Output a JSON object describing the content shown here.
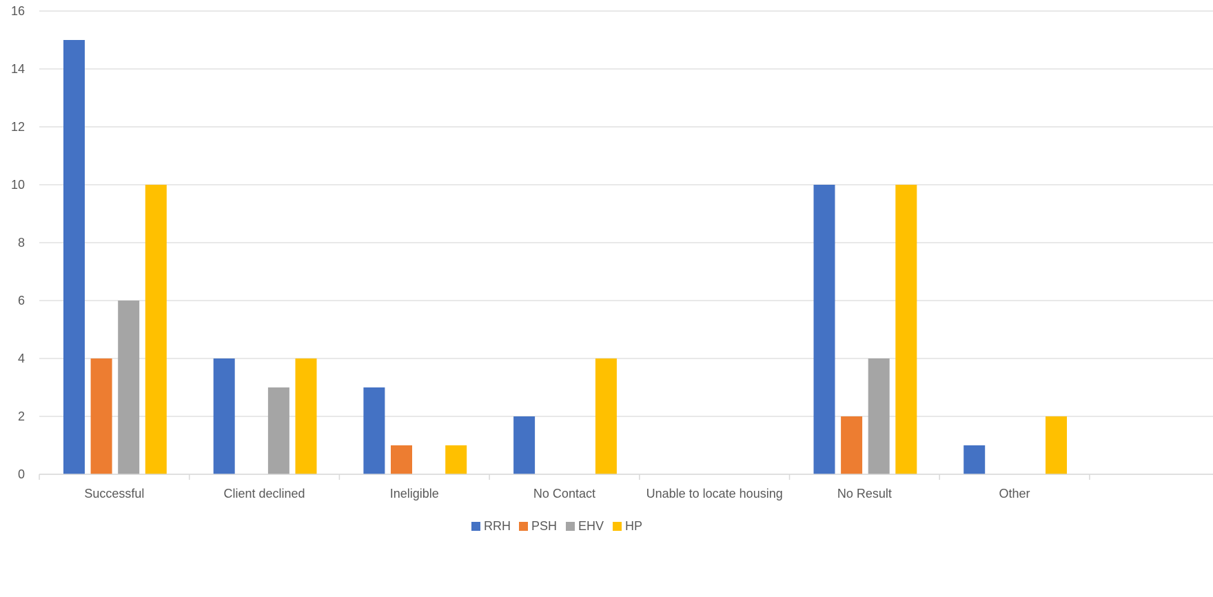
{
  "chart_data": {
    "type": "bar",
    "title": "",
    "xlabel": "",
    "ylabel": "",
    "ylim": [
      0,
      16
    ],
    "yticks": [
      0,
      2,
      4,
      6,
      8,
      10,
      12,
      14,
      16
    ],
    "grid": true,
    "legend_position": "bottom",
    "categories": [
      "Successful",
      "Client declined",
      "Ineligible",
      "No Contact",
      "Unable to locate housing",
      "No Result",
      "Other"
    ],
    "series": [
      {
        "name": "RRH",
        "color": "#4472C4",
        "values": [
          15,
          4,
          3,
          2,
          0,
          10,
          1
        ]
      },
      {
        "name": "PSH",
        "color": "#ED7D31",
        "values": [
          4,
          0,
          1,
          0,
          0,
          2,
          0
        ]
      },
      {
        "name": "EHV",
        "color": "#A5A5A5",
        "values": [
          6,
          3,
          0,
          0,
          0,
          4,
          0
        ]
      },
      {
        "name": "HP",
        "color": "#FFC000",
        "values": [
          10,
          4,
          1,
          4,
          0,
          10,
          2
        ]
      }
    ]
  }
}
